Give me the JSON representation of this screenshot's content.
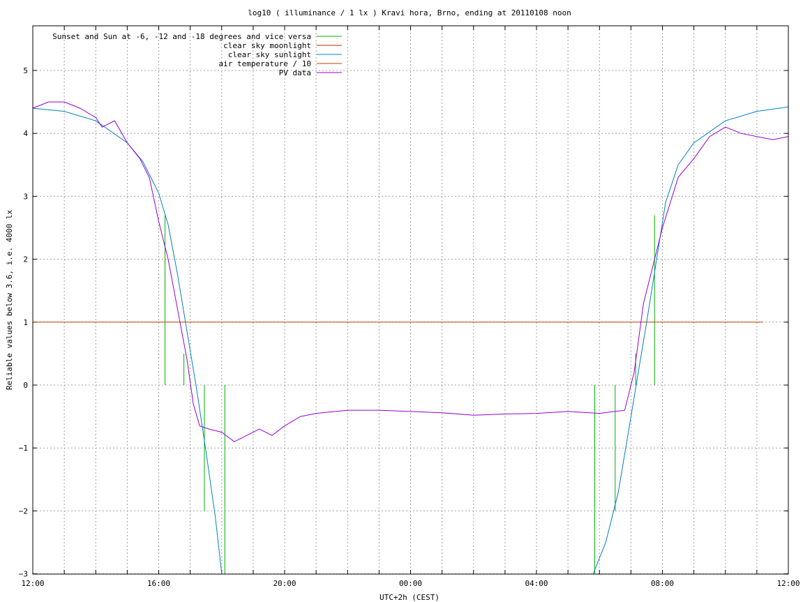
{
  "chart_data": {
    "type": "line",
    "title": "log10 ( illuminance / 1 lx ) Kravi hora, Brno, ending at 20110108 noon",
    "xlabel": "UTC+2h (CEST)",
    "ylabel": "Reliable values below 3.6, i.e. 4000 lx",
    "x_unit": "hours from 12:00 noon",
    "xlim": [
      0,
      24
    ],
    "ylim": [
      -3,
      5.7
    ],
    "x_ticks": [
      {
        "value": 0,
        "label": "12:00"
      },
      {
        "value": 4,
        "label": "16:00"
      },
      {
        "value": 8,
        "label": "20:00"
      },
      {
        "value": 12,
        "label": "00:00"
      },
      {
        "value": 16,
        "label": "04:00"
      },
      {
        "value": 20,
        "label": "08:00"
      },
      {
        "value": 24,
        "label": "12:00"
      }
    ],
    "y_ticks": [
      {
        "value": -3,
        "label": "−3"
      },
      {
        "value": -2,
        "label": "−2"
      },
      {
        "value": -1,
        "label": "−1"
      },
      {
        "value": 0,
        "label": "0"
      },
      {
        "value": 1,
        "label": "1"
      },
      {
        "value": 2,
        "label": "2"
      },
      {
        "value": 3,
        "label": "3"
      },
      {
        "value": 4,
        "label": "4"
      },
      {
        "value": 5,
        "label": "5"
      }
    ],
    "grid": true,
    "legend_position": "top-left",
    "series": [
      {
        "name": "Sunset and Sun at -6, -12 and -18 degrees and vice versa",
        "color": "#00b000",
        "style": "vertical-lines",
        "lines": [
          {
            "x": 4.2,
            "y0": 0,
            "y1": 2.7
          },
          {
            "x": 4.8,
            "y0": 0,
            "y1": 0.5
          },
          {
            "x": 5.45,
            "y0": -2.0,
            "y1": 0
          },
          {
            "x": 6.1,
            "y0": -3.0,
            "y1": 0
          },
          {
            "x": 17.85,
            "y0": -3.0,
            "y1": 0
          },
          {
            "x": 18.5,
            "y0": -2.0,
            "y1": 0
          },
          {
            "x": 19.15,
            "y0": 0,
            "y1": 0.5
          },
          {
            "x": 19.75,
            "y0": 0,
            "y1": 2.7
          }
        ]
      },
      {
        "name": "clear sky moonlight",
        "color": "#c02000",
        "x": [],
        "y": []
      },
      {
        "name": "clear sky sunlight",
        "color": "#0080c0",
        "x": [
          0,
          1,
          2,
          3,
          3.5,
          4,
          4.3,
          4.6,
          4.9,
          5.2,
          5.5,
          5.8,
          6.0,
          17.0,
          17.8,
          18.2,
          18.6,
          18.9,
          19.2,
          19.5,
          19.8,
          20.1,
          20.5,
          21,
          22,
          23,
          24
        ],
        "y": [
          4.4,
          4.35,
          4.2,
          3.85,
          3.55,
          3.05,
          2.55,
          1.75,
          0.85,
          -0.05,
          -1.05,
          -2.1,
          -3.0,
          null,
          -3.0,
          -2.5,
          -1.7,
          -0.8,
          0.1,
          1.0,
          1.95,
          2.9,
          3.5,
          3.85,
          4.2,
          4.35,
          4.42
        ]
      },
      {
        "name": "air temperature / 10",
        "color": "#c04000",
        "x": [
          0,
          23.2
        ],
        "y": [
          1.0,
          1.0
        ]
      },
      {
        "name": "PV data",
        "color": "#9400d3",
        "x": [
          0,
          0.5,
          1,
          1.5,
          2,
          2.2,
          2.6,
          3.0,
          3.4,
          3.7,
          4.0,
          4.3,
          4.6,
          4.9,
          5.1,
          5.3,
          5.6,
          6.0,
          6.4,
          6.8,
          7.2,
          7.6,
          8.0,
          8.5,
          9.0,
          10,
          11,
          12,
          13,
          14,
          15,
          16,
          17,
          18,
          18.8,
          19.1,
          19.4,
          19.7,
          20.0,
          20.5,
          21,
          21.5,
          22,
          22.5,
          23,
          23.5,
          24
        ],
        "y": [
          4.4,
          4.5,
          4.5,
          4.4,
          4.25,
          4.1,
          4.2,
          3.85,
          3.6,
          3.3,
          2.6,
          2.0,
          1.2,
          0.4,
          -0.3,
          -0.65,
          -0.7,
          -0.75,
          -0.9,
          -0.8,
          -0.7,
          -0.8,
          -0.65,
          -0.5,
          -0.45,
          -0.4,
          -0.4,
          -0.42,
          -0.44,
          -0.48,
          -0.46,
          -0.45,
          -0.42,
          -0.45,
          -0.4,
          0.2,
          1.3,
          1.9,
          2.5,
          3.3,
          3.6,
          3.95,
          4.1,
          4.0,
          3.95,
          3.9,
          3.95
        ]
      }
    ]
  }
}
